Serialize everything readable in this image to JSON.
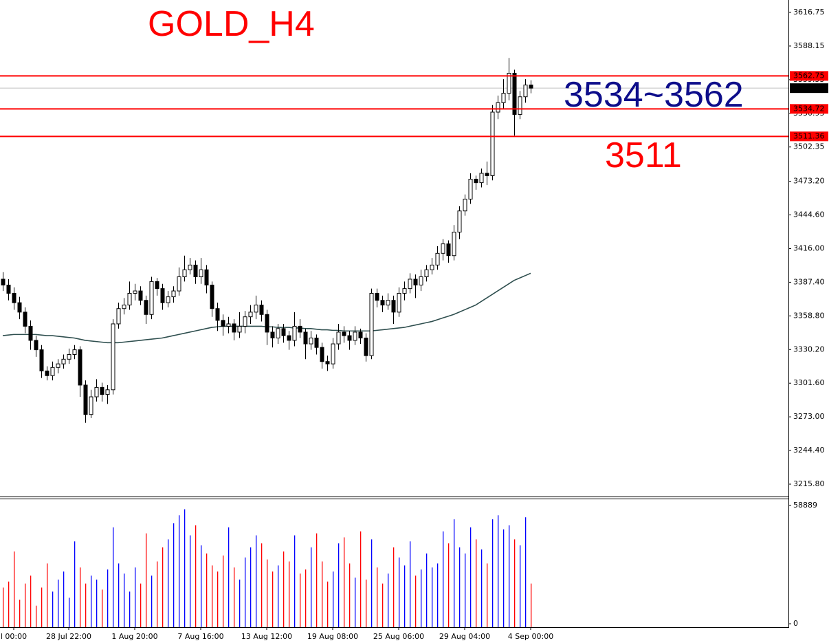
{
  "chart_data": {
    "type": "candlestick",
    "title": "GOLD_H4",
    "categories": [
      null,
      null,
      "l 00:00",
      null,
      null,
      null,
      null,
      null,
      null,
      null,
      null,
      null,
      "28 Jul 22:00",
      null,
      null,
      null,
      null,
      null,
      null,
      null,
      null,
      null,
      null,
      null,
      "1 Aug 20:00",
      null,
      null,
      null,
      null,
      null,
      null,
      null,
      null,
      null,
      null,
      null,
      "7 Aug 16:00",
      null,
      null,
      null,
      null,
      null,
      null,
      null,
      null,
      null,
      null,
      null,
      "13 Aug 12:00",
      null,
      null,
      null,
      null,
      null,
      null,
      null,
      null,
      null,
      null,
      null,
      "19 Aug 08:00",
      null,
      null,
      null,
      null,
      null,
      null,
      null,
      null,
      null,
      null,
      null,
      "25 Aug 06:00",
      null,
      null,
      null,
      null,
      null,
      null,
      null,
      null,
      null,
      null,
      null,
      "29 Aug 04:00",
      null,
      null,
      null,
      null,
      null,
      null,
      null,
      null,
      null,
      null,
      null,
      "4 Sep 00:00"
    ],
    "open": [
      3390,
      3385,
      3378,
      3370,
      3362,
      3350,
      3338,
      3330,
      3312,
      3308,
      3315,
      3318,
      3322,
      3326,
      3330,
      3300,
      3275,
      3290,
      3298,
      3292,
      3296,
      3352,
      3365,
      3368,
      3378,
      3380,
      3372,
      3360,
      3388,
      3382,
      3370,
      3375,
      3380,
      3392,
      3398,
      3402,
      3392,
      3398,
      3385,
      3365,
      3355,
      3350,
      3352,
      3345,
      3350,
      3358,
      3362,
      3368,
      3360,
      3345,
      3340,
      3348,
      3342,
      3338,
      3350,
      3345,
      3335,
      3340,
      3332,
      3320,
      3318,
      3335,
      3345,
      3342,
      3338,
      3345,
      3340,
      3325,
      3378,
      3372,
      3368,
      3372,
      3362,
      3378,
      3382,
      3390,
      3385,
      3392,
      3398,
      3402,
      3412,
      3420,
      3410,
      3430,
      3448,
      3458,
      3475,
      3472,
      3480,
      3478,
      3532,
      3540,
      3548,
      3565,
      3530,
      3545,
      3555
    ],
    "high": [
      3396,
      3390,
      3383,
      3375,
      3366,
      3355,
      3342,
      3334,
      3316,
      3320,
      3322,
      3326,
      3331,
      3334,
      3333,
      3304,
      3296,
      3305,
      3302,
      3300,
      3356,
      3370,
      3374,
      3388,
      3386,
      3384,
      3376,
      3392,
      3391,
      3386,
      3380,
      3384,
      3400,
      3410,
      3408,
      3406,
      3408,
      3402,
      3388,
      3370,
      3360,
      3358,
      3356,
      3362,
      3363,
      3368,
      3376,
      3372,
      3364,
      3350,
      3352,
      3352,
      3346,
      3362,
      3356,
      3348,
      3346,
      3343,
      3336,
      3325,
      3340,
      3352,
      3350,
      3346,
      3350,
      3348,
      3344,
      3382,
      3382,
      3376,
      3378,
      3376,
      3383,
      3388,
      3395,
      3394,
      3398,
      3402,
      3408,
      3418,
      3424,
      3423,
      3436,
      3452,
      3462,
      3480,
      3478,
      3484,
      3490,
      3538,
      3546,
      3560,
      3578,
      3568,
      3550,
      3560,
      3559
    ],
    "low": [
      3380,
      3372,
      3364,
      3356,
      3344,
      3330,
      3324,
      3306,
      3304,
      3304,
      3310,
      3314,
      3318,
      3322,
      3290,
      3268,
      3272,
      3286,
      3286,
      3284,
      3292,
      3348,
      3360,
      3364,
      3372,
      3368,
      3352,
      3356,
      3376,
      3364,
      3366,
      3370,
      3376,
      3388,
      3394,
      3386,
      3386,
      3378,
      3358,
      3346,
      3342,
      3344,
      3338,
      3340,
      3344,
      3352,
      3356,
      3354,
      3334,
      3332,
      3335,
      3336,
      3330,
      3333,
      3340,
      3322,
      3330,
      3326,
      3314,
      3312,
      3314,
      3330,
      3336,
      3330,
      3334,
      3335,
      3320,
      3322,
      3366,
      3362,
      3364,
      3352,
      3358,
      3372,
      3378,
      3374,
      3380,
      3388,
      3394,
      3398,
      3406,
      3404,
      3406,
      3424,
      3444,
      3454,
      3466,
      3468,
      3470,
      3474,
      3526,
      3535,
      3542,
      3512,
      3526,
      3540,
      3548
    ],
    "close": [
      3385,
      3378,
      3370,
      3362,
      3350,
      3338,
      3330,
      3312,
      3308,
      3315,
      3318,
      3322,
      3326,
      3330,
      3300,
      3275,
      3290,
      3298,
      3292,
      3296,
      3352,
      3365,
      3368,
      3378,
      3380,
      3372,
      3360,
      3388,
      3382,
      3370,
      3375,
      3380,
      3392,
      3398,
      3402,
      3392,
      3398,
      3385,
      3365,
      3355,
      3350,
      3352,
      3345,
      3350,
      3358,
      3362,
      3368,
      3360,
      3345,
      3340,
      3348,
      3342,
      3338,
      3350,
      3345,
      3335,
      3340,
      3332,
      3320,
      3318,
      3335,
      3345,
      3342,
      3338,
      3345,
      3340,
      3325,
      3378,
      3372,
      3368,
      3372,
      3362,
      3378,
      3382,
      3390,
      3385,
      3392,
      3398,
      3402,
      3412,
      3420,
      3410,
      3430,
      3448,
      3458,
      3475,
      3472,
      3480,
      3478,
      3532,
      3540,
      3548,
      3565,
      3530,
      3545,
      3555,
      3552.36
    ],
    "up_color": "#ffffff",
    "down_color": "#000000",
    "wick_color": "#000000",
    "ma": {
      "color": "#2f4f4f",
      "values": [
        3342,
        3342.5,
        3343,
        3343,
        3343,
        3343,
        3343,
        3342.5,
        3342,
        3342,
        3341.5,
        3341,
        3340.5,
        3340,
        3339,
        3338,
        3337.5,
        3337,
        3336.5,
        3336,
        3336,
        3336,
        3336.5,
        3337,
        3337.5,
        3338,
        3338.5,
        3339,
        3339.5,
        3340,
        3341,
        3342,
        3343,
        3344,
        3345,
        3346,
        3347,
        3348,
        3349,
        3349.5,
        3350,
        3350,
        3350,
        3350,
        3350,
        3350,
        3350,
        3350,
        3349.5,
        3349.5,
        3349,
        3349,
        3349,
        3348.5,
        3348.5,
        3348,
        3348,
        3347.5,
        3347,
        3347,
        3346.5,
        3346.5,
        3346,
        3346,
        3346,
        3346,
        3346,
        3346,
        3346.5,
        3347,
        3347.5,
        3348,
        3348.5,
        3349,
        3350,
        3351,
        3352,
        3353,
        3354,
        3355.5,
        3357,
        3358.5,
        3360,
        3362,
        3364,
        3366,
        3368,
        3371,
        3374,
        3377,
        3380,
        3383,
        3386,
        3389,
        3391,
        3393,
        3395
      ]
    },
    "ylim": [
      3205.28,
      3627.27
    ],
    "yticks": [
      3616.75,
      3588.15,
      3559.55,
      3530.95,
      3502.35,
      {
        "value": 3473.2,
        "label": "3473.20"
      },
      {
        "value": 3444.6,
        "label": "3444.60"
      },
      {
        "value": 3416,
        "label": "3416.00"
      },
      {
        "value": 3387.4,
        "label": "3387.40"
      },
      {
        "value": 3358.8,
        "label": "3358.80"
      },
      {
        "value": 3330.2,
        "label": "3330.20"
      },
      {
        "value": 3301.6,
        "label": "3301.60"
      },
      {
        "value": 3273,
        "label": "3273.00"
      },
      {
        "value": 3244.4,
        "label": "3244.40"
      },
      {
        "value": 3215.8,
        "label": "3215.80"
      }
    ],
    "levels": [
      3562.75,
      3534.72,
      3511.36
    ],
    "level_color": "#ff0000",
    "last_price": 3552.36,
    "annotations": [
      {
        "text": "3534~3562",
        "color": "#0d0d8a"
      },
      {
        "text": "3511",
        "color": "#ff0000"
      }
    ],
    "volume": {
      "values": [
        18000,
        21000,
        36000,
        12000,
        20000,
        24000,
        9000,
        18000,
        30000,
        16000,
        22000,
        26000,
        13000,
        41000,
        28000,
        20000,
        24000,
        22000,
        17000,
        27000,
        48000,
        30000,
        25000,
        16000,
        28000,
        20000,
        45000,
        24000,
        31000,
        38000,
        42000,
        50000,
        54000,
        57000,
        44000,
        49000,
        39000,
        35000,
        29000,
        26000,
        34000,
        48000,
        28000,
        22000,
        33000,
        38000,
        44000,
        40000,
        32000,
        26000,
        29000,
        36000,
        31000,
        44000,
        25000,
        27000,
        38000,
        45000,
        31000,
        21000,
        26000,
        40000,
        43000,
        30000,
        23000,
        46000,
        22000,
        42000,
        28000,
        20000,
        25000,
        38000,
        33000,
        29000,
        41000,
        24000,
        27000,
        35000,
        28000,
        30000,
        46000,
        40000,
        52000,
        38000,
        35000,
        48000,
        42000,
        37000,
        30000,
        52000,
        54000,
        47000,
        49000,
        42000,
        39000,
        53000,
        20000
      ],
      "up_color": "#0000ff",
      "down_color": "#ff0000",
      "ylim": [
        0,
        61970
      ],
      "yticks": [
        58889,
        0
      ]
    }
  }
}
